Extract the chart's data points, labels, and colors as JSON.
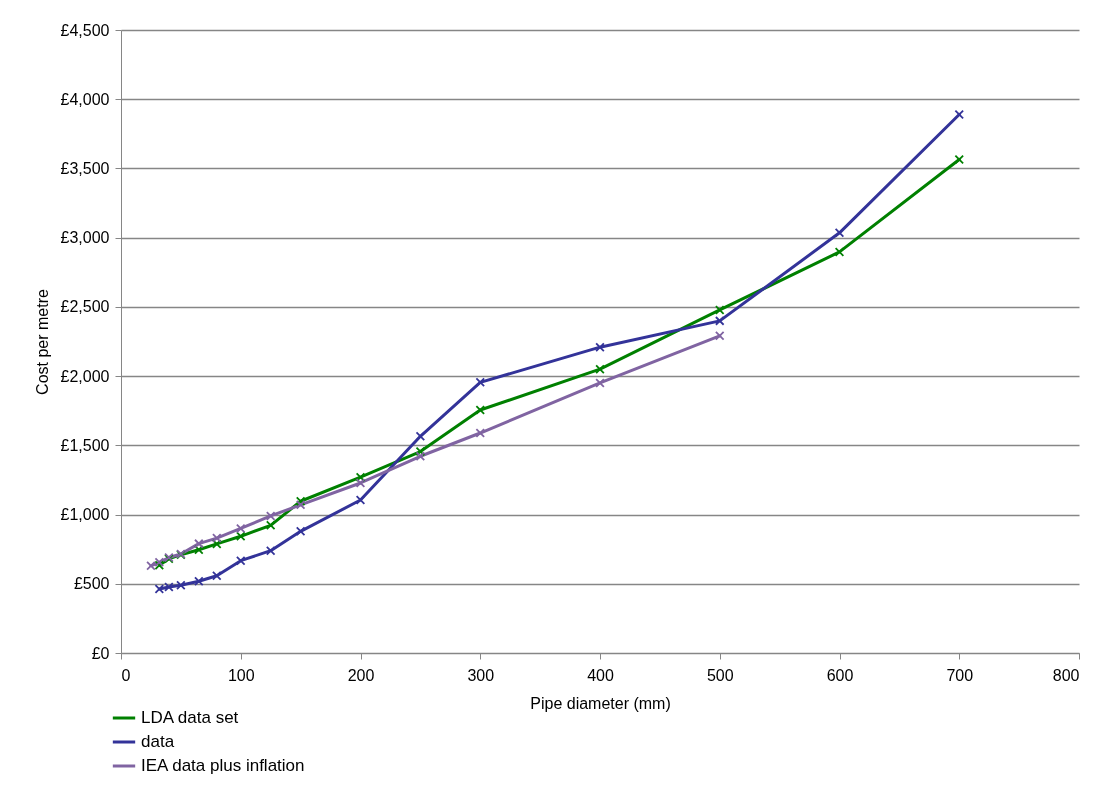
{
  "chart_data": {
    "type": "line",
    "xlabel": "Pipe diameter (mm)",
    "ylabel": "Cost per metre",
    "xlim": [
      0,
      800
    ],
    "xticks": [
      0,
      100,
      200,
      300,
      400,
      500,
      600,
      700,
      800
    ],
    "ylim": [
      0,
      4500
    ],
    "yticks": [
      {
        "value": 0,
        "label": "£0"
      },
      {
        "value": 500,
        "label": "£500"
      },
      {
        "value": 1000,
        "label": "£1,000"
      },
      {
        "value": 1500,
        "label": "£1,500"
      },
      {
        "value": 2000,
        "label": "£2,000"
      },
      {
        "value": 2500,
        "label": "£2,500"
      },
      {
        "value": 3000,
        "label": "£3,000"
      },
      {
        "value": 3500,
        "label": "£3,500"
      },
      {
        "value": 4000,
        "label": "£4,000"
      },
      {
        "value": 4500,
        "label": "£4,500"
      }
    ],
    "grid": "y",
    "legend": "bottom left",
    "marker": "cross",
    "line_style": "solid",
    "series": [
      {
        "name": "LDA data set",
        "color": "#008000",
        "x": [
          32,
          40,
          50,
          65,
          80,
          100,
          125,
          150,
          200,
          250,
          300,
          400,
          500,
          600,
          700
        ],
        "values": [
          634,
          680,
          710,
          746,
          788,
          843,
          922,
          1096,
          1270,
          1455,
          1755,
          2050,
          2478,
          2897,
          3565
        ]
      },
      {
        "name": "data",
        "color": "#333399",
        "x": [
          32,
          40,
          50,
          65,
          80,
          100,
          125,
          150,
          200,
          250,
          300,
          400,
          500,
          600,
          700
        ],
        "values": [
          462,
          477,
          489,
          518,
          558,
          667,
          739,
          879,
          1105,
          1565,
          1955,
          2209,
          2399,
          3035,
          3890
        ]
      },
      {
        "name": "IEA data plus inflation",
        "color": "#8064a2",
        "x": [
          25,
          32,
          40,
          50,
          65,
          80,
          100,
          125,
          150,
          200,
          250,
          300,
          400,
          500
        ],
        "values": [
          630,
          655,
          690,
          715,
          790,
          830,
          900,
          990,
          1070,
          1228,
          1421,
          1589,
          1951,
          2291
        ]
      }
    ]
  }
}
